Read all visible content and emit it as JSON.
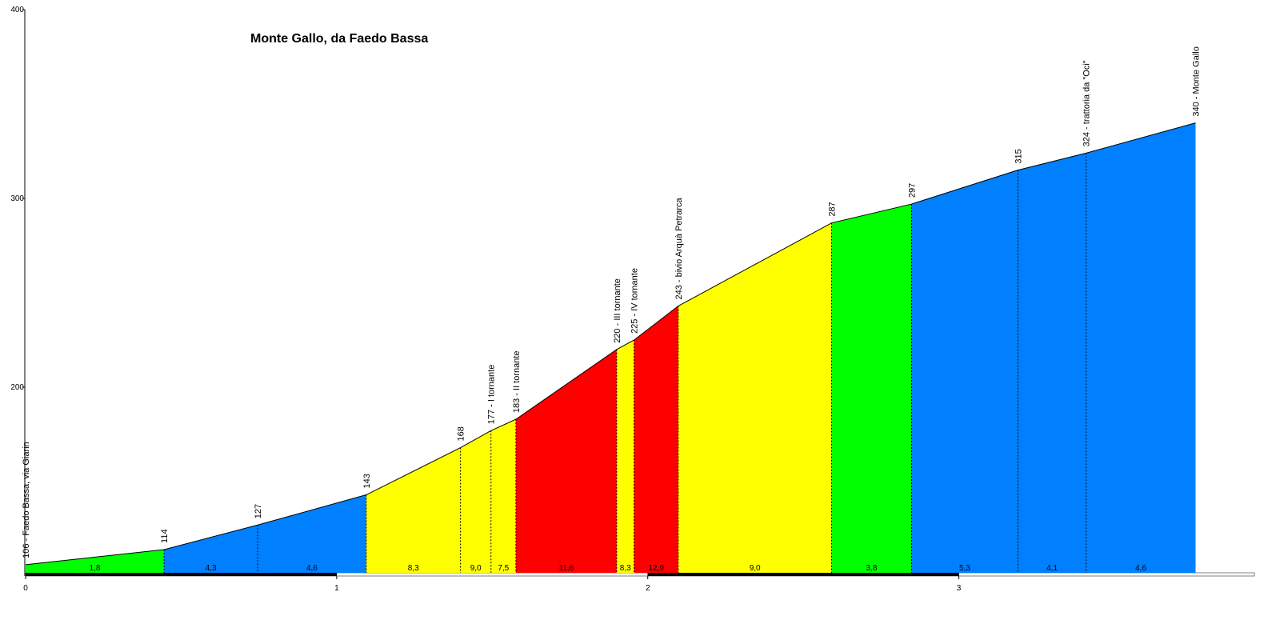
{
  "chart_data": {
    "type": "profile",
    "title": "Monte Gallo, da Faedo Bassa",
    "x": [
      0,
      0.445,
      0.746,
      1.095,
      1.398,
      1.496,
      1.576,
      1.9,
      1.956,
      2.098,
      2.591,
      2.848,
      3.19,
      3.409,
      3.761
    ],
    "values": [
      106,
      114,
      127,
      143,
      168,
      177,
      183,
      220,
      225,
      243,
      287,
      297,
      315,
      324,
      340
    ],
    "value_labels": [
      "106 - Faedo Bassa, via Giarin",
      "114",
      "127",
      "143",
      "168",
      "177 - I tornante",
      "183 - II tornante",
      "220 - III tornante",
      "225 - IV tornante",
      "243 - bivio Arquà Petrarca",
      "287",
      "297",
      "315",
      "324 - trattoria da \"Oci\"",
      "340 - Monte Gallo"
    ],
    "gradient": {
      "values": [
        1.8,
        4.3,
        4.6,
        8.3,
        9.0,
        7.5,
        11.6,
        8.3,
        12.9,
        9.0,
        3.8,
        5.3,
        4.1,
        4.6
      ],
      "value_labels": [
        "1,8",
        "4,3",
        "4,6",
        "8,3",
        "9,0",
        "7,5",
        "11,6",
        "8,3",
        "12,9",
        "9,0",
        "3,8",
        "5,3",
        "4,1",
        "4,6"
      ],
      "colors": [
        "#00ff00",
        "#0080ff",
        "#0080ff",
        "#ffff00",
        "#ffff00",
        "#ffff00",
        "#ff0000",
        "#ffff00",
        "#ff0000",
        "#ffff00",
        "#00ff00",
        "#0080ff",
        "#0080ff",
        "#0080ff"
      ]
    },
    "xlim": [
      0,
      3.95
    ],
    "xticks": [
      0,
      1,
      2,
      3
    ],
    "ylim": [
      100,
      400
    ],
    "yticks": [
      200,
      300,
      400
    ]
  }
}
